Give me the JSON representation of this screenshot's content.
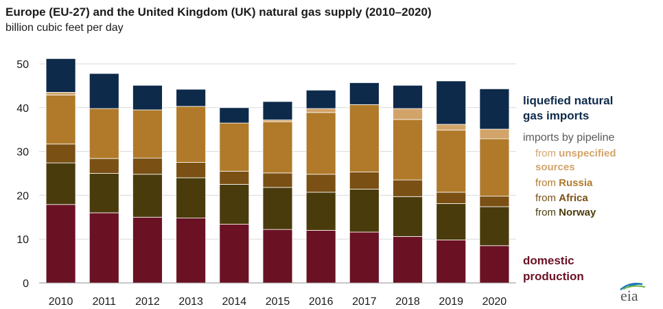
{
  "title": "Europe (EU-27) and the United Kingdom (UK) natural gas supply (2010–2020)",
  "subtitle": "billion cubic feet per day",
  "legend": {
    "lng_line1": "liquefied natural",
    "lng_line2": "gas imports",
    "pipeline_title": "imports by pipeline",
    "from": "from",
    "unspecified_line1": "unspecified",
    "unspecified_line2": "sources",
    "russia": "Russia",
    "africa": "Africa",
    "norway": "Norway",
    "domestic_line1": "domestic",
    "domestic_line2": "production"
  },
  "logo_text": "eia",
  "colors": {
    "domestic": "#6b1124",
    "norway": "#4a3b0c",
    "africa": "#7a5014",
    "russia": "#b07a2a",
    "unspecified": "#d2a46a",
    "lng": "#0e2a4a",
    "axis_text": "#1a1a1a",
    "grid": "#d9d9d9"
  },
  "chart_data": {
    "type": "bar",
    "stacked": true,
    "title": "Europe (EU-27) and the United Kingdom (UK) natural gas supply (2010–2020)",
    "ylabel": "billion cubic feet per day",
    "categories": [
      "2010",
      "2011",
      "2012",
      "2013",
      "2014",
      "2015",
      "2016",
      "2017",
      "2018",
      "2019",
      "2020"
    ],
    "ylim": [
      0,
      50
    ],
    "yticks": [
      0,
      10,
      20,
      30,
      40,
      50
    ],
    "grid": true,
    "legend_position": "right",
    "series": [
      {
        "name": "domestic production",
        "key": "domestic",
        "values": [
          17.9,
          16.0,
          15.0,
          14.8,
          13.4,
          12.2,
          12.0,
          11.6,
          10.6,
          9.8,
          8.5
        ]
      },
      {
        "name": "from Norway",
        "key": "norway",
        "values": [
          9.5,
          9.0,
          9.8,
          9.2,
          9.1,
          9.6,
          8.7,
          9.8,
          9.1,
          8.3,
          8.9
        ]
      },
      {
        "name": "from Africa",
        "key": "africa",
        "values": [
          4.3,
          3.4,
          3.7,
          3.5,
          3.0,
          3.3,
          4.1,
          3.9,
          3.8,
          2.6,
          2.4
        ]
      },
      {
        "name": "from Russia",
        "key": "russia",
        "values": [
          11.2,
          11.4,
          11.0,
          12.8,
          11.0,
          11.7,
          14.1,
          15.4,
          13.8,
          14.2,
          13.1
        ]
      },
      {
        "name": "from unspecified sources",
        "key": "unspecified",
        "values": [
          0.6,
          0.0,
          0.0,
          0.0,
          0.0,
          0.4,
          0.9,
          0.0,
          2.5,
          1.3,
          2.2
        ]
      },
      {
        "name": "liquefied natural gas imports",
        "key": "lng",
        "values": [
          7.7,
          8.0,
          5.6,
          3.9,
          3.5,
          4.2,
          4.2,
          5.0,
          5.3,
          9.9,
          9.2
        ]
      }
    ]
  }
}
